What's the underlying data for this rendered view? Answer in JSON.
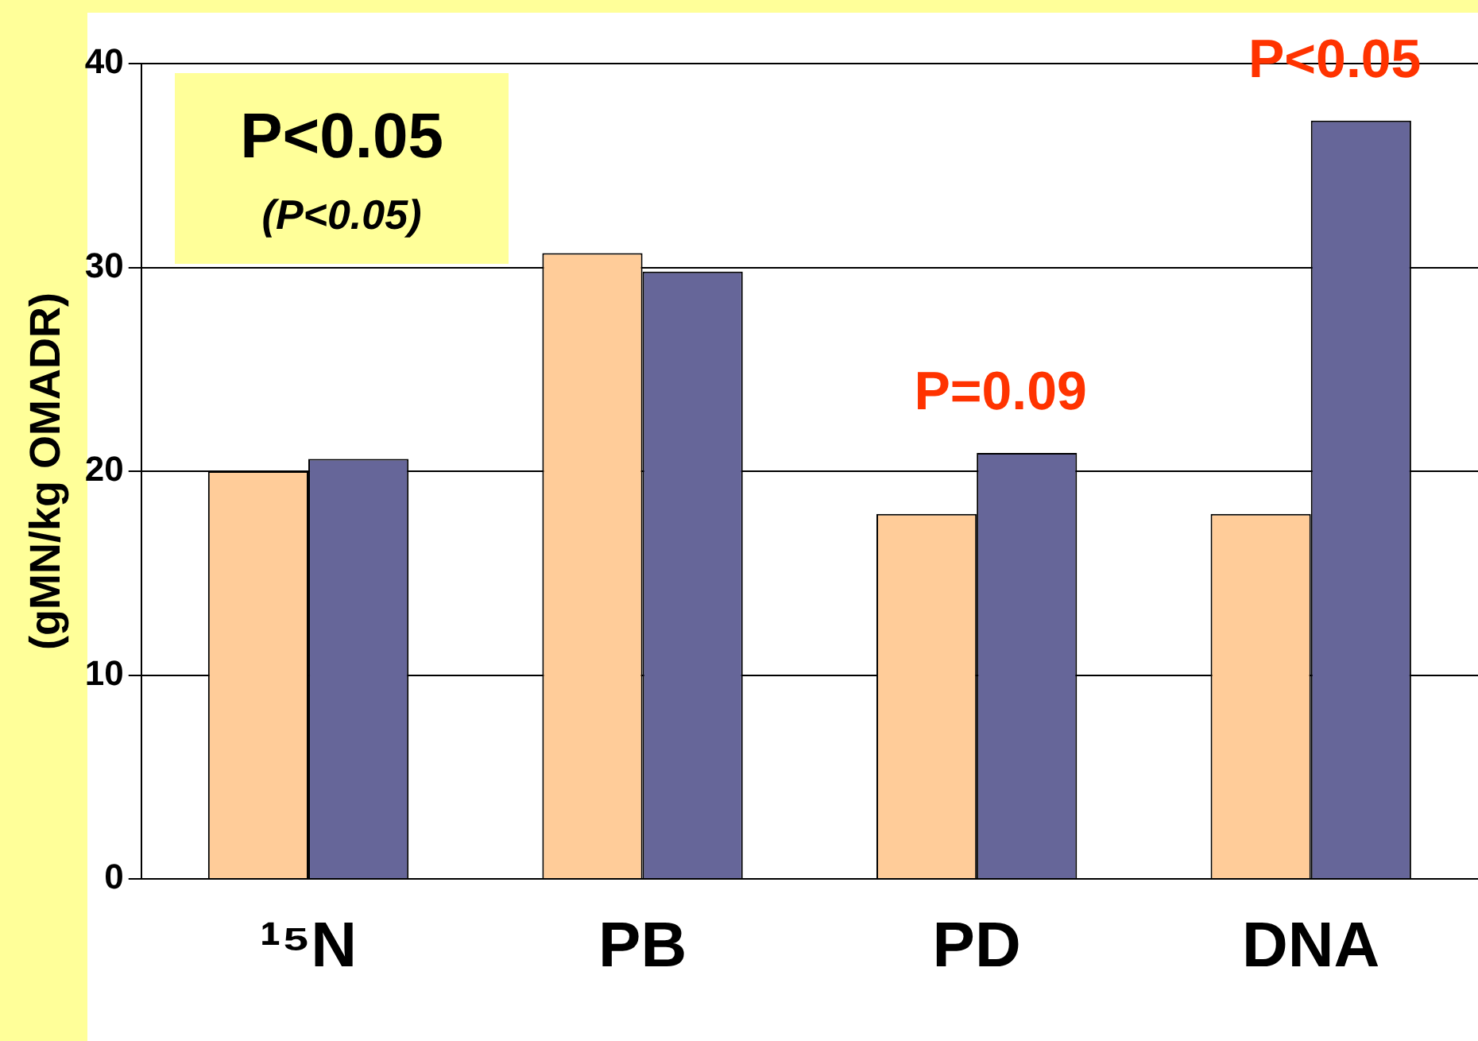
{
  "chart_data": {
    "type": "bar",
    "ylabel": "(gMN/kg OMADR)",
    "categories": [
      "¹⁵N",
      "PB",
      "PD",
      "DNA"
    ],
    "series": [
      {
        "color": "#ffcc99",
        "values": [
          20.0,
          30.7,
          17.9,
          17.9
        ]
      },
      {
        "color": "#666699",
        "values": [
          20.6,
          29.8,
          20.9,
          37.2
        ]
      }
    ],
    "ylim": [
      0,
      40
    ],
    "yticks": [
      0,
      10,
      20,
      30,
      40
    ],
    "grid": "y",
    "legend": false,
    "annotations": [
      "P<0.05",
      "(P<0.05)",
      {
        "text": "P=0.09",
        "x": "PD",
        "y": 20.9
      },
      {
        "text": "P<0.05",
        "x": "DNA",
        "y": 37.2
      }
    ]
  }
}
